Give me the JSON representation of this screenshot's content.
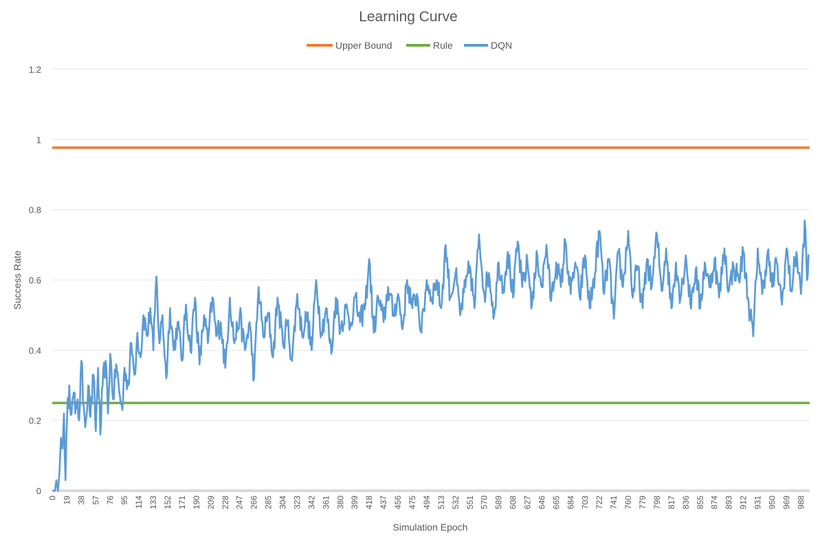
{
  "chart_data": {
    "type": "line",
    "title": "Learning Curve",
    "xlabel": "Simulation Epoch",
    "ylabel": "Success Rate",
    "ylim": [
      0,
      1.2
    ],
    "yticks": [
      "0",
      "0.2",
      "0.4",
      "0.6",
      "0.8",
      "1",
      "1.2"
    ],
    "xlim": [
      0,
      999
    ],
    "xtick_step": 19,
    "x_categories_count": 1000,
    "grid": "horizontal",
    "legend_position": "top",
    "series": [
      {
        "name": "Upper Bound",
        "color": "#ED7D31",
        "constant": 0.977
      },
      {
        "name": "Rule",
        "color": "#70AD47",
        "constant": 0.25
      },
      {
        "name": "DQN",
        "color": "#5B9BD5",
        "anchors": [
          [
            0,
            0.0
          ],
          [
            3,
            0.0
          ],
          [
            5,
            0.03
          ],
          [
            7,
            0.0
          ],
          [
            9,
            0.05
          ],
          [
            11,
            0.15
          ],
          [
            13,
            0.12
          ],
          [
            15,
            0.22
          ],
          [
            17,
            0.03
          ],
          [
            19,
            0.2
          ],
          [
            22,
            0.3
          ],
          [
            25,
            0.22
          ],
          [
            28,
            0.28
          ],
          [
            30,
            0.22
          ],
          [
            33,
            0.26
          ],
          [
            35,
            0.2
          ],
          [
            38,
            0.37
          ],
          [
            41,
            0.24
          ],
          [
            44,
            0.2
          ],
          [
            47,
            0.3
          ],
          [
            50,
            0.21
          ],
          [
            54,
            0.33
          ],
          [
            57,
            0.17
          ],
          [
            60,
            0.35
          ],
          [
            63,
            0.16
          ],
          [
            66,
            0.3
          ],
          [
            70,
            0.37
          ],
          [
            73,
            0.22
          ],
          [
            76,
            0.39
          ],
          [
            80,
            0.26
          ],
          [
            84,
            0.36
          ],
          [
            88,
            0.28
          ],
          [
            92,
            0.23
          ],
          [
            95,
            0.35
          ],
          [
            100,
            0.3
          ],
          [
            104,
            0.42
          ],
          [
            108,
            0.33
          ],
          [
            112,
            0.45
          ],
          [
            116,
            0.38
          ],
          [
            120,
            0.5
          ],
          [
            125,
            0.44
          ],
          [
            129,
            0.52
          ],
          [
            133,
            0.4
          ],
          [
            137,
            0.61
          ],
          [
            141,
            0.42
          ],
          [
            145,
            0.5
          ],
          [
            150,
            0.32
          ],
          [
            155,
            0.52
          ],
          [
            160,
            0.4
          ],
          [
            165,
            0.48
          ],
          [
            171,
            0.37
          ],
          [
            176,
            0.53
          ],
          [
            182,
            0.4
          ],
          [
            188,
            0.55
          ],
          [
            194,
            0.36
          ],
          [
            200,
            0.5
          ],
          [
            205,
            0.42
          ],
          [
            211,
            0.55
          ],
          [
            216,
            0.44
          ],
          [
            222,
            0.48
          ],
          [
            228,
            0.35
          ],
          [
            234,
            0.55
          ],
          [
            240,
            0.42
          ],
          [
            247,
            0.5
          ],
          [
            254,
            0.4
          ],
          [
            260,
            0.48
          ],
          [
            266,
            0.32
          ],
          [
            272,
            0.58
          ],
          [
            278,
            0.44
          ],
          [
            285,
            0.5
          ],
          [
            291,
            0.38
          ],
          [
            297,
            0.55
          ],
          [
            304,
            0.42
          ],
          [
            310,
            0.48
          ],
          [
            316,
            0.37
          ],
          [
            323,
            0.56
          ],
          [
            329,
            0.45
          ],
          [
            336,
            0.5
          ],
          [
            342,
            0.4
          ],
          [
            348,
            0.6
          ],
          [
            355,
            0.45
          ],
          [
            361,
            0.52
          ],
          [
            368,
            0.39
          ],
          [
            374,
            0.55
          ],
          [
            380,
            0.46
          ],
          [
            387,
            0.52
          ],
          [
            393,
            0.47
          ],
          [
            399,
            0.55
          ],
          [
            406,
            0.48
          ],
          [
            413,
            0.53
          ],
          [
            418,
            0.66
          ],
          [
            424,
            0.45
          ],
          [
            430,
            0.55
          ],
          [
            437,
            0.48
          ],
          [
            443,
            0.58
          ],
          [
            450,
            0.5
          ],
          [
            456,
            0.56
          ],
          [
            462,
            0.46
          ],
          [
            468,
            0.6
          ],
          [
            475,
            0.52
          ],
          [
            481,
            0.56
          ],
          [
            487,
            0.45
          ],
          [
            494,
            0.6
          ],
          [
            500,
            0.55
          ],
          [
            507,
            0.6
          ],
          [
            513,
            0.52
          ],
          [
            519,
            0.7
          ],
          [
            525,
            0.55
          ],
          [
            532,
            0.62
          ],
          [
            538,
            0.5
          ],
          [
            545,
            0.58
          ],
          [
            551,
            0.64
          ],
          [
            557,
            0.52
          ],
          [
            563,
            0.73
          ],
          [
            570,
            0.56
          ],
          [
            576,
            0.62
          ],
          [
            583,
            0.5
          ],
          [
            589,
            0.65
          ],
          [
            595,
            0.58
          ],
          [
            601,
            0.68
          ],
          [
            608,
            0.55
          ],
          [
            614,
            0.71
          ],
          [
            620,
            0.58
          ],
          [
            627,
            0.65
          ],
          [
            633,
            0.53
          ],
          [
            640,
            0.67
          ],
          [
            646,
            0.58
          ],
          [
            652,
            0.7
          ],
          [
            658,
            0.54
          ],
          [
            665,
            0.65
          ],
          [
            671,
            0.58
          ],
          [
            677,
            0.71
          ],
          [
            684,
            0.56
          ],
          [
            690,
            0.65
          ],
          [
            696,
            0.55
          ],
          [
            703,
            0.67
          ],
          [
            709,
            0.52
          ],
          [
            716,
            0.62
          ],
          [
            722,
            0.74
          ],
          [
            728,
            0.56
          ],
          [
            734,
            0.66
          ],
          [
            741,
            0.49
          ],
          [
            747,
            0.68
          ],
          [
            753,
            0.58
          ],
          [
            760,
            0.74
          ],
          [
            766,
            0.55
          ],
          [
            772,
            0.64
          ],
          [
            779,
            0.52
          ],
          [
            785,
            0.66
          ],
          [
            791,
            0.58
          ],
          [
            798,
            0.73
          ],
          [
            804,
            0.57
          ],
          [
            810,
            0.69
          ],
          [
            817,
            0.52
          ],
          [
            823,
            0.65
          ],
          [
            829,
            0.55
          ],
          [
            836,
            0.67
          ],
          [
            842,
            0.53
          ],
          [
            849,
            0.63
          ],
          [
            855,
            0.52
          ],
          [
            861,
            0.65
          ],
          [
            867,
            0.58
          ],
          [
            874,
            0.66
          ],
          [
            880,
            0.55
          ],
          [
            887,
            0.69
          ],
          [
            893,
            0.57
          ],
          [
            899,
            0.64
          ],
          [
            906,
            0.6
          ],
          [
            912,
            0.68
          ],
          [
            918,
            0.55
          ],
          [
            925,
            0.44
          ],
          [
            931,
            0.69
          ],
          [
            937,
            0.56
          ],
          [
            944,
            0.68
          ],
          [
            950,
            0.58
          ],
          [
            956,
            0.65
          ],
          [
            963,
            0.53
          ],
          [
            969,
            0.69
          ],
          [
            975,
            0.57
          ],
          [
            982,
            0.68
          ],
          [
            988,
            0.56
          ],
          [
            993,
            0.77
          ],
          [
            996,
            0.6
          ],
          [
            999,
            0.67
          ]
        ]
      }
    ]
  }
}
